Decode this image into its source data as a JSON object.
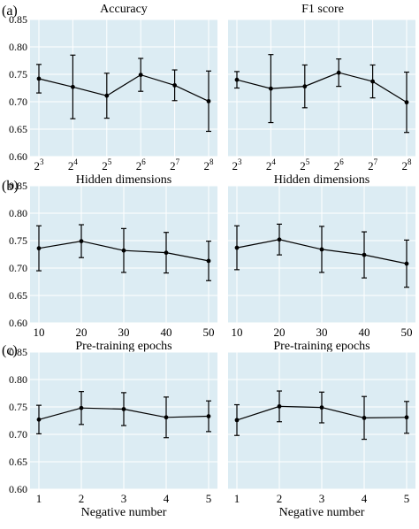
{
  "figure": {
    "panel_labels": [
      "(a)",
      "(b)",
      "(c)"
    ],
    "column_titles": [
      "Accuracy",
      "F1 score"
    ],
    "colors": {
      "plot_bg": "#dcecf3",
      "grid": "#ffffff",
      "line": "#000000"
    }
  },
  "chart_data": [
    {
      "type": "line",
      "panel": "(a)",
      "title": "Accuracy",
      "x_tick_labels": [
        {
          "base": "2",
          "exp": "3"
        },
        {
          "base": "2",
          "exp": "4"
        },
        {
          "base": "2",
          "exp": "5"
        },
        {
          "base": "2",
          "exp": "6"
        },
        {
          "base": "2",
          "exp": "7"
        },
        {
          "base": "2",
          "exp": "8"
        }
      ],
      "xlabel": "Hidden dimensions",
      "ylabel": "",
      "ylim": [
        0.6,
        0.85
      ],
      "yticks": [
        "0.60",
        "0.65",
        "0.70",
        "0.75",
        "0.80",
        "0.85"
      ],
      "grid": true,
      "series": [
        {
          "values": [
            0.742,
            0.727,
            0.711,
            0.749,
            0.73,
            0.701
          ],
          "error": [
            0.026,
            0.058,
            0.041,
            0.03,
            0.028,
            0.055
          ]
        }
      ]
    },
    {
      "type": "line",
      "panel": "(a)",
      "title": "F1 score",
      "x_tick_labels": [
        {
          "base": "2",
          "exp": "3"
        },
        {
          "base": "2",
          "exp": "4"
        },
        {
          "base": "2",
          "exp": "5"
        },
        {
          "base": "2",
          "exp": "6"
        },
        {
          "base": "2",
          "exp": "7"
        },
        {
          "base": "2",
          "exp": "8"
        }
      ],
      "xlabel": "Hidden dimensions",
      "ylabel": "",
      "ylim": [
        0.6,
        0.85
      ],
      "yticks": [
        "0.60",
        "0.65",
        "0.70",
        "0.75",
        "0.80",
        "0.85"
      ],
      "grid": true,
      "series": [
        {
          "values": [
            0.74,
            0.724,
            0.728,
            0.753,
            0.737,
            0.699
          ],
          "error": [
            0.015,
            0.062,
            0.039,
            0.025,
            0.03,
            0.055
          ]
        }
      ]
    },
    {
      "type": "line",
      "panel": "(b)",
      "x_tick_labels": [
        "10",
        "20",
        "30",
        "40",
        "50"
      ],
      "xlabel": "Pre-training epochs",
      "ylabel": "",
      "ylim": [
        0.6,
        0.85
      ],
      "yticks": [
        "0.60",
        "0.65",
        "0.70",
        "0.75",
        "0.80",
        "0.85"
      ],
      "grid": true,
      "series": [
        {
          "values": [
            0.736,
            0.749,
            0.732,
            0.728,
            0.713
          ],
          "error": [
            0.041,
            0.03,
            0.04,
            0.037,
            0.036
          ]
        }
      ]
    },
    {
      "type": "line",
      "panel": "(b)",
      "x_tick_labels": [
        "10",
        "20",
        "30",
        "40",
        "50"
      ],
      "xlabel": "Pre-training epochs",
      "ylabel": "",
      "ylim": [
        0.6,
        0.85
      ],
      "yticks": [
        "0.60",
        "0.65",
        "0.70",
        "0.75",
        "0.80",
        "0.85"
      ],
      "grid": true,
      "series": [
        {
          "values": [
            0.737,
            0.752,
            0.734,
            0.724,
            0.708
          ],
          "error": [
            0.04,
            0.028,
            0.042,
            0.042,
            0.043
          ]
        }
      ]
    },
    {
      "type": "line",
      "panel": "(c)",
      "x_tick_labels": [
        "1",
        "2",
        "3",
        "4",
        "5"
      ],
      "xlabel": "Negative number",
      "ylabel": "",
      "ylim": [
        0.6,
        0.85
      ],
      "yticks": [
        "0.60",
        "0.65",
        "0.70",
        "0.75",
        "0.80",
        "0.85"
      ],
      "grid": true,
      "series": [
        {
          "values": [
            0.727,
            0.748,
            0.746,
            0.731,
            0.733
          ],
          "error": [
            0.026,
            0.03,
            0.03,
            0.037,
            0.028
          ]
        }
      ]
    },
    {
      "type": "line",
      "panel": "(c)",
      "x_tick_labels": [
        "1",
        "2",
        "3",
        "4",
        "5"
      ],
      "xlabel": "Negative number",
      "ylabel": "",
      "ylim": [
        0.6,
        0.85
      ],
      "yticks": [
        "0.60",
        "0.65",
        "0.70",
        "0.75",
        "0.80",
        "0.85"
      ],
      "grid": true,
      "series": [
        {
          "values": [
            0.726,
            0.751,
            0.749,
            0.73,
            0.731
          ],
          "error": [
            0.028,
            0.028,
            0.028,
            0.039,
            0.029
          ]
        }
      ]
    }
  ]
}
